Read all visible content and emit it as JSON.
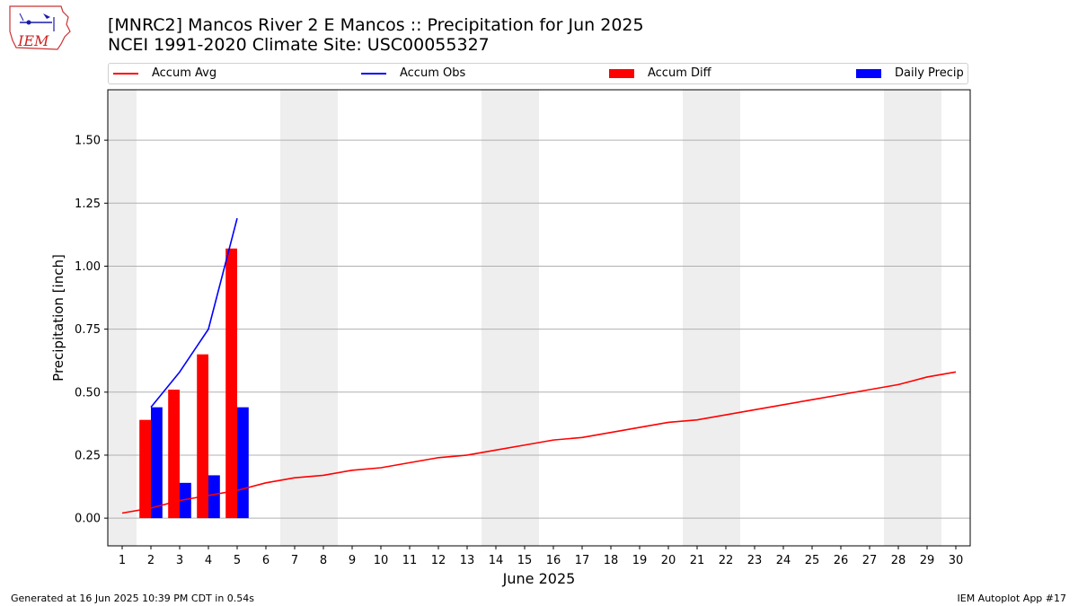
{
  "header": {
    "title_line1": "[MNRC2] Mancos River 2 E Mancos :: Precipitation for Jun 2025",
    "title_line2": "NCEI 1991-2020 Climate Site: USC00055327"
  },
  "logo": {
    "text": "IEM"
  },
  "legend": {
    "placement": "top",
    "items": [
      {
        "label": "Accum Avg",
        "kind": "line",
        "color": "#ff0000"
      },
      {
        "label": "Accum Obs",
        "kind": "line",
        "color": "#0000ff"
      },
      {
        "label": "Accum Diff",
        "kind": "bar",
        "color": "#ff0000"
      },
      {
        "label": "Daily Precip",
        "kind": "bar",
        "color": "#0000ff"
      }
    ]
  },
  "footer": {
    "left": "Generated at 16 Jun 2025 10:39 PM CDT in 0.54s",
    "right": "IEM Autoplot App #17"
  },
  "chart_data": {
    "type": "bar",
    "xlabel": "June 2025",
    "ylabel": "Precipitation [inch]",
    "xlim": [
      0.5,
      30.5
    ],
    "ylim": [
      -0.11,
      1.7
    ],
    "x_ticks": [
      1,
      2,
      3,
      4,
      5,
      6,
      7,
      8,
      9,
      10,
      11,
      12,
      13,
      14,
      15,
      16,
      17,
      18,
      19,
      20,
      21,
      22,
      23,
      24,
      25,
      26,
      27,
      28,
      29,
      30
    ],
    "y_ticks": [
      0.0,
      0.25,
      0.5,
      0.75,
      1.0,
      1.25,
      1.5
    ],
    "y_tick_labels": [
      "0.00",
      "0.25",
      "0.50",
      "0.75",
      "1.00",
      "1.25",
      "1.50"
    ],
    "grid": "horizontal",
    "weekend_shading": [
      [
        0.5,
        1.5
      ],
      [
        6.5,
        8.5
      ],
      [
        13.5,
        15.5
      ],
      [
        20.5,
        22.5
      ],
      [
        27.5,
        29.5
      ]
    ],
    "shading_color": "#eeeeee",
    "series": [
      {
        "name": "Accum Avg",
        "type": "line",
        "color": "#ff0000",
        "x": [
          1,
          2,
          3,
          4,
          5,
          6,
          7,
          8,
          9,
          10,
          11,
          12,
          13,
          14,
          15,
          16,
          17,
          18,
          19,
          20,
          21,
          22,
          23,
          24,
          25,
          26,
          27,
          28,
          29,
          30
        ],
        "values": [
          0.02,
          0.04,
          0.07,
          0.09,
          0.11,
          0.14,
          0.16,
          0.17,
          0.19,
          0.2,
          0.22,
          0.24,
          0.25,
          0.27,
          0.29,
          0.31,
          0.32,
          0.34,
          0.36,
          0.38,
          0.39,
          0.41,
          0.43,
          0.45,
          0.47,
          0.49,
          0.51,
          0.53,
          0.56,
          0.58
        ]
      },
      {
        "name": "Accum Obs",
        "type": "line",
        "color": "#0000ff",
        "x": [
          2,
          3,
          4,
          5
        ],
        "values": [
          0.44,
          0.58,
          0.75,
          1.19
        ]
      },
      {
        "name": "Accum Diff",
        "type": "bar",
        "color": "#ff0000",
        "x": [
          2,
          3,
          4,
          5
        ],
        "values": [
          0.39,
          0.51,
          0.65,
          1.07
        ]
      },
      {
        "name": "Daily Precip",
        "type": "bar",
        "color": "#0000ff",
        "x": [
          2,
          3,
          4,
          5
        ],
        "values": [
          0.44,
          0.14,
          0.17,
          0.44
        ]
      }
    ]
  }
}
